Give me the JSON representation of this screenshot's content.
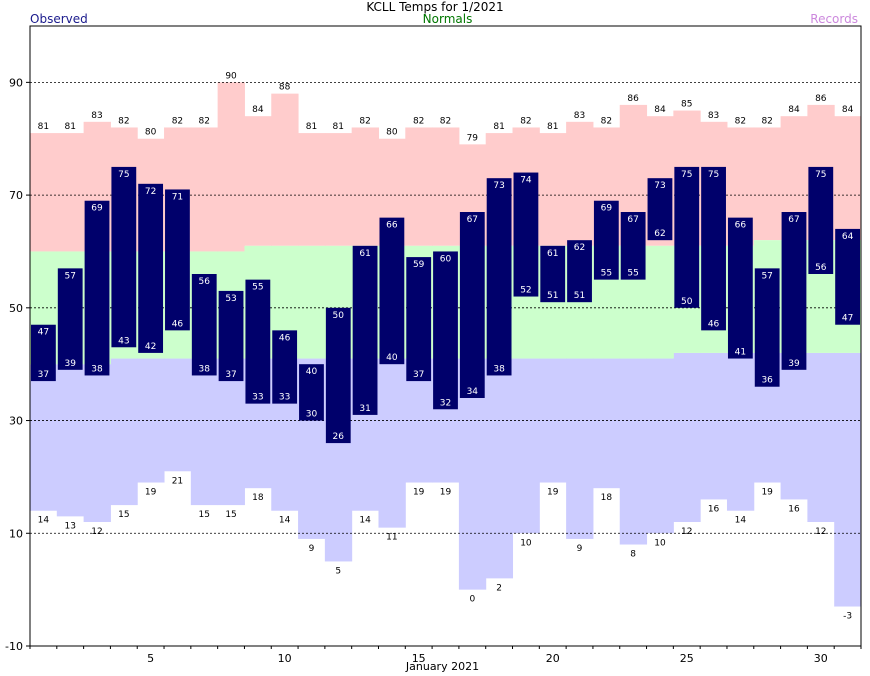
{
  "chart_data": {
    "type": "bar",
    "title": "KCLL Temps for 1/2021",
    "xlabel": "January 2021",
    "ylabel": "",
    "ylim": [
      -10,
      100
    ],
    "yticks": [
      -10,
      10,
      30,
      50,
      70,
      90
    ],
    "xticks": [
      5,
      10,
      15,
      20,
      25,
      30
    ],
    "grid": true,
    "legend": {
      "observed": "Observed",
      "normals": "Normals",
      "records": "Records",
      "placement": "top"
    },
    "colors": {
      "observed": "#00006b",
      "observed_text": "#1a1a8c",
      "normals": "#ccffcc",
      "normals_text": "#007700",
      "records": "#ffcccc",
      "records_low": "#ccccff",
      "records_text": "#cc88dd"
    },
    "days": [
      1,
      2,
      3,
      4,
      5,
      6,
      7,
      8,
      9,
      10,
      11,
      12,
      13,
      14,
      15,
      16,
      17,
      18,
      19,
      20,
      21,
      22,
      23,
      24,
      25,
      26,
      27,
      28,
      29,
      30,
      31
    ],
    "series": [
      {
        "name": "Observed",
        "key": "obs_high",
        "values": [
          47,
          57,
          69,
          75,
          72,
          71,
          56,
          53,
          55,
          46,
          40,
          50,
          61,
          66,
          59,
          60,
          67,
          73,
          74,
          61,
          62,
          69,
          67,
          73,
          75,
          75,
          66,
          57,
          67,
          75,
          64
        ]
      },
      {
        "name": "Observed",
        "key": "obs_low",
        "values": [
          37,
          39,
          38,
          43,
          42,
          46,
          38,
          37,
          33,
          33,
          30,
          26,
          31,
          40,
          37,
          32,
          34,
          38,
          52,
          51,
          51,
          55,
          55,
          62,
          50,
          46,
          41,
          36,
          39,
          56,
          47
        ]
      },
      {
        "name": "Records",
        "key": "rec_high",
        "values": [
          81,
          81,
          83,
          82,
          80,
          82,
          82,
          90,
          84,
          88,
          81,
          81,
          82,
          80,
          82,
          82,
          79,
          81,
          82,
          81,
          83,
          82,
          86,
          84,
          85,
          83,
          82,
          82,
          84,
          86,
          84
        ]
      },
      {
        "name": "Records",
        "key": "rec_low",
        "values": [
          14,
          13,
          12,
          15,
          19,
          21,
          15,
          15,
          18,
          14,
          9,
          5,
          14,
          11,
          19,
          19,
          0,
          2,
          10,
          19,
          9,
          18,
          8,
          10,
          12,
          16,
          14,
          19,
          16,
          12,
          -3
        ]
      },
      {
        "name": "Normals",
        "key": "norm_high",
        "values": [
          60,
          60,
          60,
          60,
          60,
          60,
          60,
          60,
          61,
          61,
          61,
          61,
          61,
          61,
          61,
          61,
          61,
          61,
          61,
          61,
          61,
          61,
          61,
          61,
          61,
          61,
          61,
          62,
          62,
          62,
          62
        ]
      },
      {
        "name": "Normals",
        "key": "norm_low",
        "values": [
          40,
          40,
          40,
          41,
          41,
          41,
          41,
          41,
          41,
          41,
          41,
          41,
          41,
          41,
          41,
          41,
          41,
          41,
          41,
          41,
          41,
          41,
          41,
          41,
          42,
          42,
          42,
          42,
          42,
          42,
          42
        ]
      }
    ]
  }
}
